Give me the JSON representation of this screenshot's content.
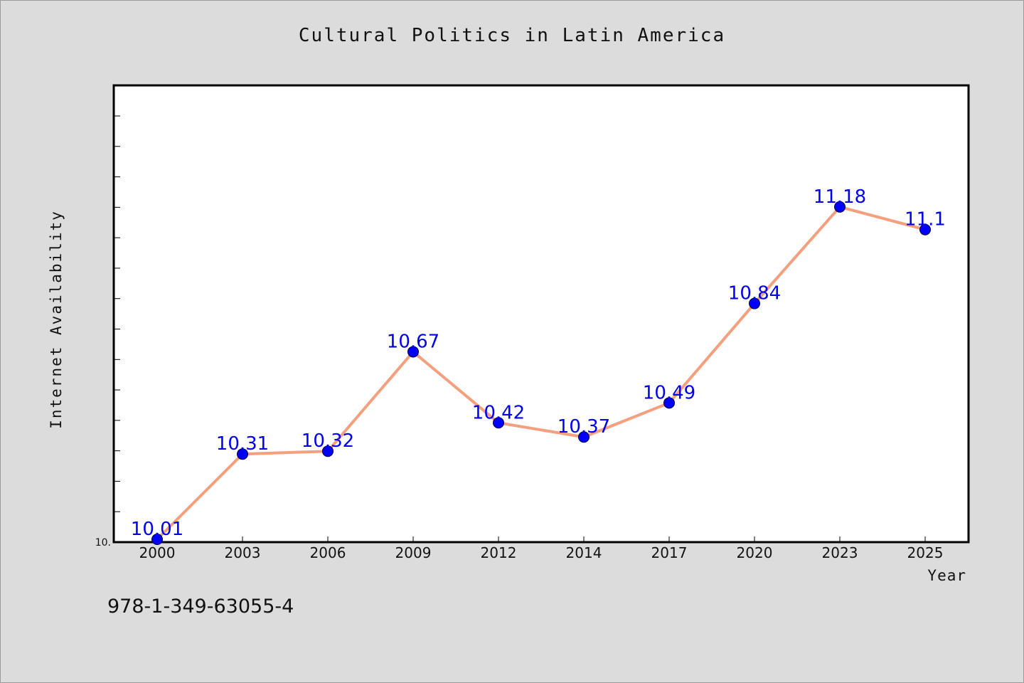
{
  "chart_data": {
    "type": "line",
    "title": "Cultural Politics in Latin America",
    "xlabel": "Year",
    "ylabel": "Internet Availability",
    "categories": [
      "2000",
      "2003",
      "2006",
      "2009",
      "2012",
      "2014",
      "2017",
      "2020",
      "2023",
      "2025"
    ],
    "series": [
      {
        "values": [
          10.01,
          10.31,
          10.32,
          10.67,
          10.42,
          10.37,
          10.49,
          10.84,
          11.18,
          11.1
        ]
      }
    ],
    "data_labels": [
      "10.01",
      "10.31",
      "10.32",
      "10.67",
      "10.42",
      "10.37",
      "10.49",
      "10.84",
      "11.18",
      "11.1"
    ],
    "ytick_labels": [
      "10."
    ],
    "ylim": [
      10.0,
      11.5
    ],
    "grid": false,
    "colors": {
      "line": "#f4a07e",
      "marker": "#0000ff",
      "labels": "#0000ee",
      "background": "#dcdcdc",
      "plot_area": "#ffffff"
    }
  },
  "footer": {
    "isbn": "978-1-349-63055-4"
  }
}
